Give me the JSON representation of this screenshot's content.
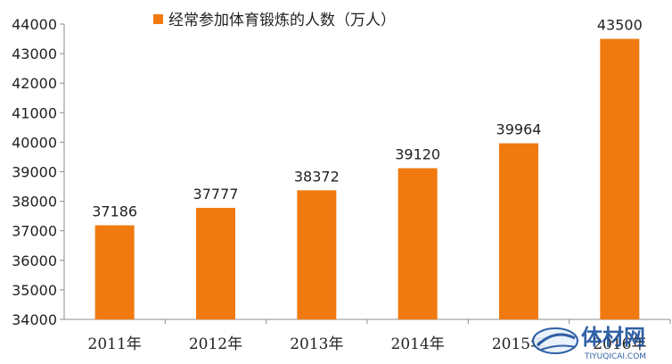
{
  "chart_data": {
    "type": "bar",
    "title": "",
    "xlabel": "",
    "ylabel": "",
    "categories": [
      "2011年",
      "2012年",
      "2013年",
      "2014年",
      "2015年",
      "2016年"
    ],
    "series": [
      {
        "name": "经常参加体育锻炼的人数（万人）",
        "values": [
          37186,
          37777,
          38372,
          39120,
          39964,
          43500
        ]
      }
    ],
    "data_labels": [
      "37186",
      "37777",
      "38372",
      "39120",
      "39964",
      "43500"
    ],
    "ylim": [
      34000,
      44000
    ],
    "yticks": [
      34000,
      35000,
      36000,
      37000,
      38000,
      39000,
      40000,
      41000,
      42000,
      43000,
      44000
    ],
    "ytick_labels": [
      "34000",
      "35000",
      "36000",
      "37000",
      "38000",
      "39000",
      "40000",
      "41000",
      "42000",
      "43000",
      "44000"
    ],
    "grid": false,
    "legend_position": "top",
    "colors": {
      "bar": "#F07A10",
      "axis": "#8C8C8C",
      "watermark": "#1A4F9C"
    }
  },
  "watermark": {
    "text": "体材网",
    "subtext": "TIYUQICAI.COM",
    "icon": "boat-logo-icon"
  }
}
